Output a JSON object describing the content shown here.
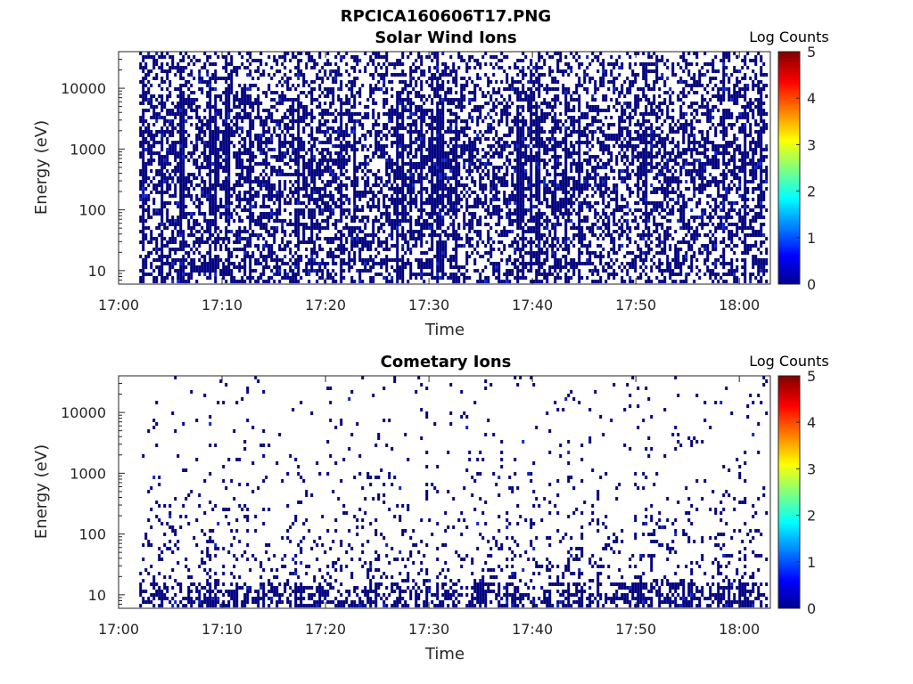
{
  "figure_title": "RPCICA160606T17.PNG",
  "colors": {
    "cell": "#000080",
    "cell_dense": "#0A28C8",
    "axis": "#262626"
  },
  "chart_data": [
    {
      "type": "heatmap",
      "title": "Solar Wind Ions",
      "xlabel": "Time",
      "ylabel": "Energy (eV)",
      "yscale": "log",
      "xlim": [
        "17:00",
        "18:03"
      ],
      "ylim": [
        6,
        40000
      ],
      "x_ticks": [
        "17:00",
        "17:10",
        "17:20",
        "17:30",
        "17:40",
        "17:50",
        "18:00"
      ],
      "y_ticks": [
        "10",
        "100",
        "1000",
        "10000"
      ],
      "colorbar": {
        "label": "Log Counts",
        "range": [
          0,
          5
        ],
        "ticks": [
          "0",
          "1",
          "2",
          "3",
          "4",
          "5"
        ]
      },
      "data_start": "17:02",
      "grid": false,
      "density": 0.42,
      "typical_log_counts": 0.3
    },
    {
      "type": "heatmap",
      "title": "Cometary Ions",
      "xlabel": "Time",
      "ylabel": "Energy (eV)",
      "yscale": "log",
      "xlim": [
        "17:00",
        "18:03"
      ],
      "ylim": [
        6,
        40000
      ],
      "x_ticks": [
        "17:00",
        "17:10",
        "17:20",
        "17:30",
        "17:40",
        "17:50",
        "18:00"
      ],
      "y_ticks": [
        "10",
        "100",
        "1000",
        "10000"
      ],
      "colorbar": {
        "label": "Log Counts",
        "range": [
          0,
          5
        ],
        "ticks": [
          "0",
          "1",
          "2",
          "3",
          "4",
          "5"
        ]
      },
      "data_start": "17:02",
      "grid": false,
      "density": 0.12,
      "typical_log_counts": 0.3
    }
  ]
}
